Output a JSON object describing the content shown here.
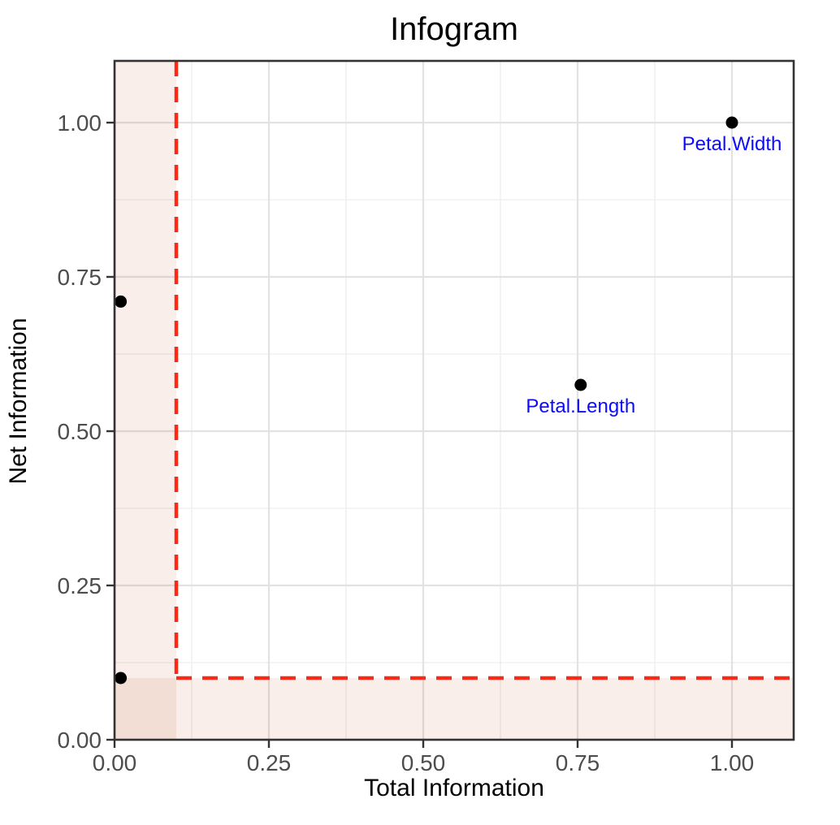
{
  "chart_data": {
    "type": "scatter",
    "title": "Infogram",
    "xlabel": "Total Information",
    "ylabel": "Net Information",
    "xlim": [
      0,
      1.1
    ],
    "ylim": [
      0,
      1.1
    ],
    "grid": true,
    "legend": "none",
    "x_ticks": {
      "values": [
        0,
        0.25,
        0.5,
        0.75,
        1.0
      ],
      "labels": [
        "0.00",
        "0.25",
        "0.50",
        "0.75",
        "1.00"
      ]
    },
    "y_ticks": {
      "values": [
        0,
        0.25,
        0.5,
        0.75,
        1.0
      ],
      "labels": [
        "0.00",
        "0.25",
        "0.50",
        "0.75",
        "1.00"
      ]
    },
    "x_minor_ticks": [
      0.125,
      0.375,
      0.625,
      0.875
    ],
    "y_minor_ticks": [
      0.125,
      0.375,
      0.625,
      0.875
    ],
    "points": [
      {
        "x": 1.0,
        "y": 1.0,
        "label": "Petal.Width"
      },
      {
        "x": 0.755,
        "y": 0.575,
        "label": "Petal.Length"
      },
      {
        "x": 0.01,
        "y": 0.71,
        "label": ""
      },
      {
        "x": 0.01,
        "y": 0.1,
        "label": ""
      }
    ],
    "threshold": {
      "x": 0.1,
      "y": 0.1,
      "line_style": "dashed"
    },
    "shaded_regions": [
      {
        "x0": 0,
        "x1": 0.1,
        "y0": 0,
        "y1": 1.1
      },
      {
        "x0": 0,
        "x1": 1.1,
        "y0": 0,
        "y1": 0.1
      }
    ],
    "colors": {
      "point": "#000000",
      "point_label": "#0b0bff",
      "dashed_line": "#fa2b16",
      "shade": "rgba(190,65,25,0.09)",
      "grid_major": "#e2e2e2",
      "grid_minor": "#f0f0f0",
      "panel_border": "#333333",
      "tick_mark": "#333333",
      "axis_text": "#4d4d4d",
      "title_color": "#000000",
      "panel_background": "#ffffff"
    }
  }
}
